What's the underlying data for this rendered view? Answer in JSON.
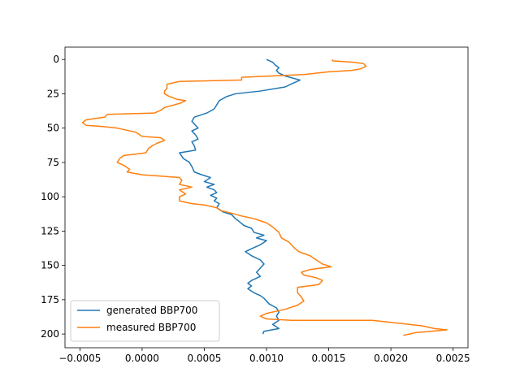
{
  "chart_data": {
    "type": "line",
    "orientation": "y-downward profile (x value vs depth index)",
    "xlim": [
      -0.00062,
      0.00262
    ],
    "ylim": [
      210,
      -9
    ],
    "x_ticks": [
      -0.0005,
      0.0,
      0.0005,
      0.001,
      0.0015,
      0.002,
      0.0025
    ],
    "x_tick_labels": [
      "−0.0005",
      "0.0000",
      "0.0005",
      "0.0010",
      "0.0015",
      "0.0020",
      "0.0025"
    ],
    "y_ticks": [
      0,
      25,
      50,
      75,
      100,
      125,
      150,
      175,
      200
    ],
    "y_tick_labels": [
      "0",
      "25",
      "50",
      "75",
      "100",
      "125",
      "150",
      "175",
      "200"
    ],
    "grid": false,
    "legend_position": "lower-left",
    "series": [
      {
        "name": "generated BBP700",
        "color": "#1f77b4",
        "points": [
          [
            0.001,
            0
          ],
          [
            0.00105,
            2
          ],
          [
            0.00107,
            4
          ],
          [
            0.0011,
            6
          ],
          [
            0.00108,
            8
          ],
          [
            0.0011,
            10
          ],
          [
            0.00115,
            12
          ],
          [
            0.00127,
            15
          ],
          [
            0.00122,
            17
          ],
          [
            0.00115,
            20
          ],
          [
            0.00095,
            23
          ],
          [
            0.00075,
            25
          ],
          [
            0.00068,
            27
          ],
          [
            0.00062,
            30
          ],
          [
            0.0006,
            33
          ],
          [
            0.00058,
            36
          ],
          [
            0.00052,
            39
          ],
          [
            0.00042,
            42
          ],
          [
            0.0004,
            45
          ],
          [
            0.00042,
            47
          ],
          [
            0.00045,
            50
          ],
          [
            0.0004,
            52
          ],
          [
            0.00043,
            55
          ],
          [
            0.00045,
            58
          ],
          [
            0.0004,
            60
          ],
          [
            0.00042,
            63
          ],
          [
            0.00043,
            66
          ],
          [
            0.0003,
            68
          ],
          [
            0.00033,
            72
          ],
          [
            0.00038,
            75
          ],
          [
            0.0004,
            78
          ],
          [
            0.00042,
            82
          ],
          [
            0.00048,
            84
          ],
          [
            0.00055,
            86
          ],
          [
            0.0005,
            89
          ],
          [
            0.00058,
            91
          ],
          [
            0.00052,
            93
          ],
          [
            0.00058,
            95
          ],
          [
            0.0006,
            97
          ],
          [
            0.00055,
            99
          ],
          [
            0.0006,
            101
          ],
          [
            0.00058,
            103
          ],
          [
            0.00062,
            105
          ],
          [
            0.0006,
            108
          ],
          [
            0.00065,
            111
          ],
          [
            0.00072,
            113
          ],
          [
            0.00075,
            116
          ],
          [
            0.00078,
            118
          ],
          [
            0.00082,
            121
          ],
          [
            0.00088,
            123
          ],
          [
            0.0009,
            126
          ],
          [
            0.00098,
            128
          ],
          [
            0.00092,
            130
          ],
          [
            0.001,
            132
          ],
          [
            0.00095,
            135
          ],
          [
            0.0009,
            137
          ],
          [
            0.00083,
            140
          ],
          [
            0.00088,
            143
          ],
          [
            0.00095,
            146
          ],
          [
            0.00098,
            149
          ],
          [
            0.00095,
            152
          ],
          [
            0.00092,
            155
          ],
          [
            0.00095,
            158
          ],
          [
            0.00088,
            161
          ],
          [
            0.00085,
            163
          ],
          [
            0.00088,
            165
          ],
          [
            0.00085,
            167
          ],
          [
            0.0009,
            170
          ],
          [
            0.00095,
            172
          ],
          [
            0.00098,
            174
          ],
          [
            0.001,
            176
          ],
          [
            0.00102,
            178
          ],
          [
            0.00108,
            181
          ],
          [
            0.0011,
            184
          ],
          [
            0.00108,
            187
          ],
          [
            0.0011,
            190
          ],
          [
            0.00105,
            193
          ],
          [
            0.0011,
            196
          ],
          [
            0.00098,
            198
          ],
          [
            0.00097,
            200
          ]
        ]
      },
      {
        "name": "measured BBP700",
        "color": "#ff7f0e",
        "points": [
          [
            0.00153,
            0
          ],
          [
            0.00153,
            1
          ],
          [
            0.0017,
            2
          ],
          [
            0.00178,
            3
          ],
          [
            0.0018,
            5
          ],
          [
            0.00175,
            7
          ],
          [
            0.00168,
            8
          ],
          [
            0.0015,
            9
          ],
          [
            0.0013,
            11
          ],
          [
            0.0008,
            13
          ],
          [
            0.0008,
            15
          ],
          [
            0.0003,
            16
          ],
          [
            0.0002,
            18
          ],
          [
            0.0002,
            21
          ],
          [
            0.00018,
            23
          ],
          [
            0.00018,
            25
          ],
          [
            0.00022,
            27
          ],
          [
            0.00028,
            29
          ],
          [
            0.00035,
            30
          ],
          [
            0.0003,
            32
          ],
          [
            0.00018,
            35
          ],
          [
            0.00015,
            37
          ],
          [
            0.0001,
            39
          ],
          [
            -0.00028,
            40
          ],
          [
            -0.0003,
            42
          ],
          [
            -0.00045,
            44
          ],
          [
            -0.00048,
            46
          ],
          [
            -0.00045,
            48
          ],
          [
            -0.0003,
            49
          ],
          [
            -0.0002,
            50
          ],
          [
            -0.0001,
            52
          ],
          [
            -5e-05,
            53
          ],
          [
            0.0,
            56
          ],
          [
            0.00015,
            57
          ],
          [
            0.00018,
            59
          ],
          [
            0.00012,
            61
          ],
          [
            8e-05,
            63
          ],
          [
            5e-05,
            65
          ],
          [
            3e-05,
            68
          ],
          [
            -0.00015,
            70
          ],
          [
            -0.00018,
            72
          ],
          [
            -0.0002,
            75
          ],
          [
            -0.00015,
            77
          ],
          [
            -0.0001,
            80
          ],
          [
            -0.00012,
            82
          ],
          [
            0.0,
            84
          ],
          [
            0.00015,
            85
          ],
          [
            0.0003,
            86
          ],
          [
            0.00032,
            88
          ],
          [
            0.0003,
            91
          ],
          [
            0.0004,
            93
          ],
          [
            0.0003,
            95
          ],
          [
            0.00035,
            98
          ],
          [
            0.0003,
            100
          ],
          [
            0.0003,
            103
          ],
          [
            0.0004,
            105
          ],
          [
            0.0005,
            106
          ],
          [
            0.0006,
            108
          ],
          [
            0.00063,
            110
          ],
          [
            0.00072,
            112
          ],
          [
            0.0008,
            114
          ],
          [
            0.0009,
            116
          ],
          [
            0.001,
            119
          ],
          [
            0.00105,
            122
          ],
          [
            0.0011,
            126
          ],
          [
            0.00112,
            130
          ],
          [
            0.00118,
            133
          ],
          [
            0.00122,
            137
          ],
          [
            0.00126,
            140
          ],
          [
            0.00135,
            143
          ],
          [
            0.0014,
            146
          ],
          [
            0.00145,
            149
          ],
          [
            0.00152,
            151
          ],
          [
            0.00135,
            153
          ],
          [
            0.00128,
            155
          ],
          [
            0.0013,
            157
          ],
          [
            0.0014,
            159
          ],
          [
            0.00145,
            161
          ],
          [
            0.00142,
            164
          ],
          [
            0.00125,
            166
          ],
          [
            0.00125,
            170
          ],
          [
            0.00128,
            173
          ],
          [
            0.0013,
            176
          ],
          [
            0.00125,
            179
          ],
          [
            0.00115,
            182
          ],
          [
            0.001,
            185
          ],
          [
            0.00095,
            187
          ],
          [
            0.001,
            189
          ],
          [
            0.0012,
            190
          ],
          [
            0.00185,
            190
          ],
          [
            0.00205,
            192
          ],
          [
            0.00225,
            194
          ],
          [
            0.00235,
            196
          ],
          [
            0.00245,
            197
          ],
          [
            0.0022,
            199
          ],
          [
            0.0021,
            201
          ]
        ]
      }
    ]
  }
}
